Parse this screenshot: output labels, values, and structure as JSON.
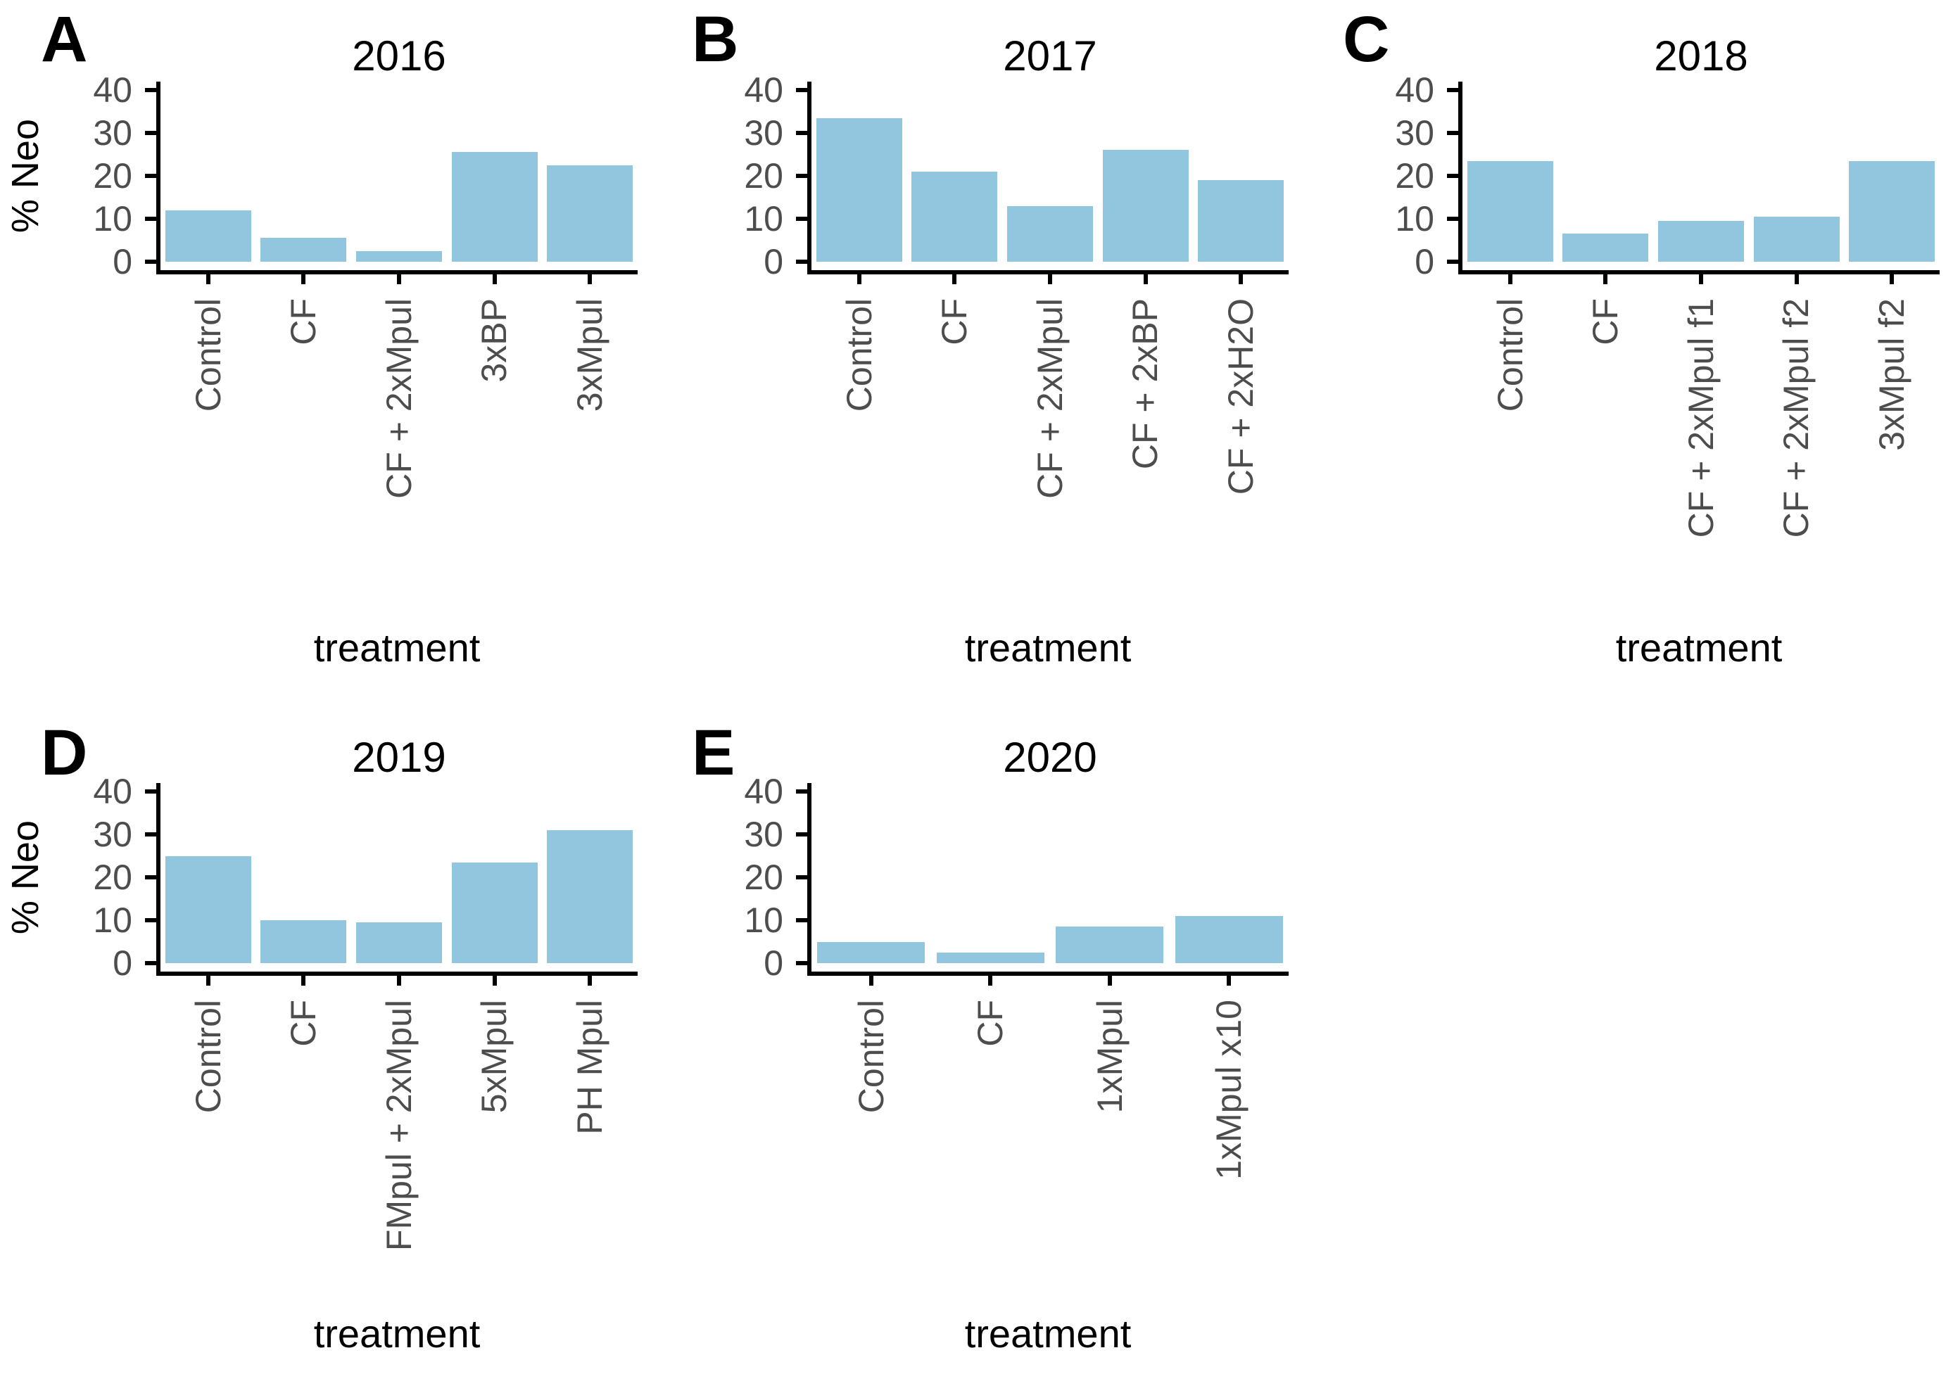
{
  "figure": {
    "axes": {
      "ylabel": "% Neo",
      "xlabel": "treatment",
      "yticks": [
        0,
        10,
        20,
        30,
        40
      ],
      "ylim": [
        0,
        40
      ],
      "grid": false
    },
    "style": {
      "bar_color": "#92c5de",
      "tick_label_color": "#4d4d4d",
      "axis_color": "#000000",
      "background": "#ffffff"
    }
  },
  "chart_data": [
    {
      "type": "bar",
      "panel_label": "A",
      "title": "2016",
      "categories": [
        "Control",
        "CF",
        "CF + 2xMpul",
        "3xBP",
        "3xMpul"
      ],
      "values": [
        12,
        5.5,
        2.5,
        25.5,
        22.5
      ],
      "xlabel": "treatment",
      "ylabel": "% Neo",
      "ylim": [
        0,
        40
      ]
    },
    {
      "type": "bar",
      "panel_label": "B",
      "title": "2017",
      "categories": [
        "Control",
        "CF",
        "CF + 2xMpul",
        "CF + 2xBP",
        "CF + 2xH2O"
      ],
      "values": [
        33.5,
        21,
        13,
        26,
        19
      ],
      "xlabel": "treatment",
      "ylabel": "% Neo",
      "ylim": [
        0,
        40
      ]
    },
    {
      "type": "bar",
      "panel_label": "C",
      "title": "2018",
      "categories": [
        "Control",
        "CF",
        "CF + 2xMpul f1",
        "CF + 2xMpul f2",
        "3xMpul f2"
      ],
      "values": [
        23.5,
        6.5,
        9.5,
        10.5,
        23.5
      ],
      "xlabel": "treatment",
      "ylabel": "% Neo",
      "ylim": [
        0,
        40
      ]
    },
    {
      "type": "bar",
      "panel_label": "D",
      "title": "2019",
      "categories": [
        "Control",
        "CF",
        "FMpul + 2xMpul",
        "5xMpul",
        "PH Mpul"
      ],
      "values": [
        25,
        10,
        9.5,
        23.5,
        31
      ],
      "xlabel": "treatment",
      "ylabel": "% Neo",
      "ylim": [
        0,
        40
      ]
    },
    {
      "type": "bar",
      "panel_label": "E",
      "title": "2020",
      "categories": [
        "Control",
        "CF",
        "1xMpul",
        "1xMpul x10"
      ],
      "values": [
        5,
        2.5,
        8.5,
        11
      ],
      "xlabel": "treatment",
      "ylabel": "% Neo",
      "ylim": [
        0,
        40
      ]
    }
  ]
}
